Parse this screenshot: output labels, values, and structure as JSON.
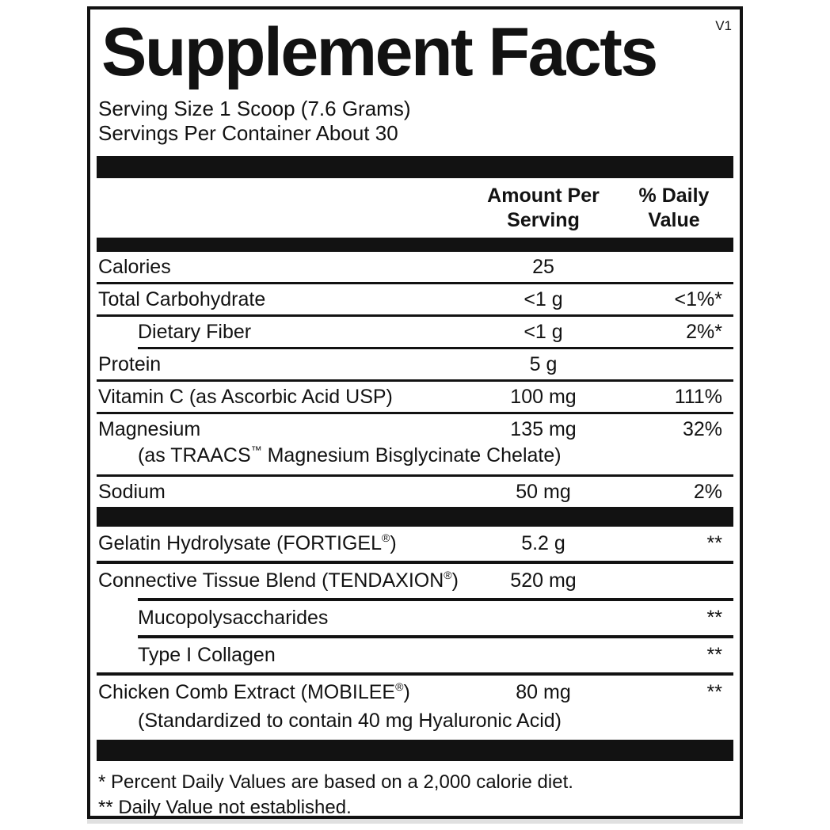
{
  "colors": {
    "ink": "#121212",
    "paper": "#ffffff"
  },
  "title": "Supplement Facts",
  "version_tag": "V1",
  "serving_info": {
    "serving_size": "Serving Size 1 Scoop (7.6 Grams)",
    "servings_per_container": "Servings Per Container About 30"
  },
  "columns": {
    "amount_lines": [
      "Amount Per",
      "Serving"
    ],
    "daily_value_lines": [
      "% Daily",
      "Value"
    ]
  },
  "rows": [
    {
      "key": "calories",
      "section": "top",
      "indent": false,
      "label": [
        {
          "t": "Calories"
        }
      ],
      "amount": "25",
      "dv": "",
      "divider": ""
    },
    {
      "key": "total-carbohydrate",
      "section": "top",
      "indent": false,
      "label": [
        {
          "t": "Total Carbohydrate"
        }
      ],
      "amount": "<1 g",
      "dv": "<1%*",
      "divider": ""
    },
    {
      "key": "dietary-fiber",
      "section": "top",
      "indent": true,
      "label": [
        {
          "t": "Dietary Fiber"
        }
      ],
      "amount": "<1 g",
      "dv": "2%*",
      "divider": "indent"
    },
    {
      "key": "protein",
      "section": "top",
      "indent": false,
      "label": [
        {
          "t": "Protein"
        }
      ],
      "amount": "5 g",
      "dv": "",
      "divider": ""
    },
    {
      "key": "vitamin-c",
      "section": "top",
      "indent": false,
      "label": [
        {
          "t": "Vitamin C (as Ascorbic Acid USP)"
        }
      ],
      "amount": "100 mg",
      "dv": "111%",
      "divider": ""
    },
    {
      "key": "magnesium",
      "section": "top",
      "indent": false,
      "label": [
        {
          "t": "Magnesium"
        }
      ],
      "sub": [
        {
          "t": "(as TRAACS"
        },
        {
          "t": "™",
          "sup": true
        },
        {
          "t": " Magnesium Bisglycinate Chelate)"
        }
      ],
      "amount": "135 mg",
      "dv": "32%",
      "divider": ""
    },
    {
      "key": "sodium",
      "section": "top",
      "indent": false,
      "label": [
        {
          "t": "Sodium"
        }
      ],
      "amount": "50 mg",
      "dv": "2%",
      "divider": "none"
    },
    {
      "key": "gelatin-hydrolysate",
      "section": "bottom",
      "indent": false,
      "label": [
        {
          "t": "Gelatin Hydrolysate (FORTIGEL"
        },
        {
          "t": "®",
          "sup": true
        },
        {
          "t": ")"
        }
      ],
      "amount": "5.2 g",
      "dv": "**",
      "divider": "medium"
    },
    {
      "key": "connective-tissue-blend",
      "section": "bottom",
      "indent": false,
      "label": [
        {
          "t": "Connective Tissue Blend (TENDAXION"
        },
        {
          "t": "®",
          "sup": true
        },
        {
          "t": ")"
        }
      ],
      "amount": "520 mg",
      "dv": "",
      "divider": "medium indent"
    },
    {
      "key": "mucopolysaccharides",
      "section": "bottom",
      "indent": true,
      "label": [
        {
          "t": "Mucopolysaccharides"
        }
      ],
      "amount": "",
      "dv": "**",
      "divider": "medium indent"
    },
    {
      "key": "type-i-collagen",
      "section": "bottom",
      "indent": true,
      "label": [
        {
          "t": "Type I Collagen"
        }
      ],
      "amount": "",
      "dv": "**",
      "divider": "medium"
    },
    {
      "key": "chicken-comb-extract",
      "section": "bottom",
      "indent": false,
      "label": [
        {
          "t": "Chicken Comb Extract (MOBILEE"
        },
        {
          "t": "®",
          "sup": true
        },
        {
          "t": ")"
        }
      ],
      "sub": [
        {
          "t": "(Standardized to contain 40 mg Hyaluronic Acid)"
        }
      ],
      "amount": "80 mg",
      "dv": "**",
      "divider": "none"
    }
  ],
  "footnotes": [
    "* Percent Daily Values are based on a 2,000 calorie diet.",
    "** Daily Value not established."
  ]
}
